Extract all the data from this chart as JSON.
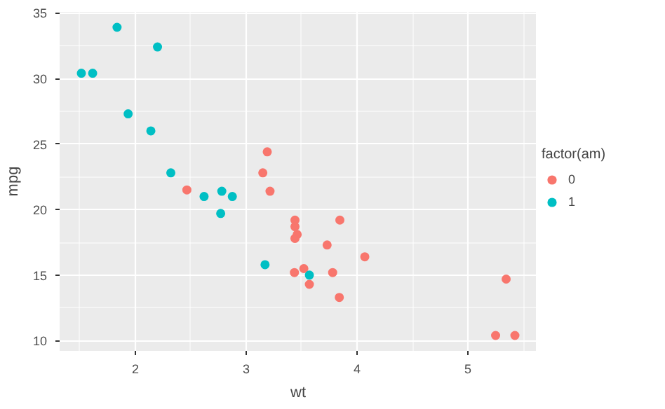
{
  "chart_data": {
    "type": "scatter",
    "xlabel": "wt",
    "ylabel": "mpg",
    "legend_title": "factor(am)",
    "legend": "right",
    "grid": true,
    "marker": "circle",
    "xlim": [
      1.317,
      5.62
    ],
    "ylim": [
      9.225,
      35.075
    ],
    "xticks": [
      2,
      3,
      4,
      5
    ],
    "yticks": [
      10,
      15,
      20,
      25,
      30,
      35
    ],
    "series": [
      {
        "name": "0",
        "color": "#f8766d",
        "x": [
          3.215,
          3.44,
          3.46,
          3.57,
          3.19,
          3.15,
          3.44,
          3.44,
          4.07,
          3.73,
          3.78,
          5.25,
          5.424,
          5.345,
          2.465,
          3.52,
          3.435,
          3.84,
          3.845
        ],
        "values": [
          21.4,
          18.7,
          18.1,
          14.3,
          24.4,
          22.8,
          19.2,
          17.8,
          16.4,
          17.3,
          15.2,
          10.4,
          10.4,
          14.7,
          21.5,
          15.5,
          15.2,
          13.3,
          19.2
        ]
      },
      {
        "name": "1",
        "color": "#00bfc4",
        "x": [
          2.62,
          2.875,
          2.32,
          2.2,
          1.615,
          1.835,
          1.935,
          2.14,
          1.513,
          3.17,
          2.77,
          3.57,
          2.78
        ],
        "values": [
          21.0,
          21.0,
          22.8,
          32.4,
          30.4,
          33.9,
          27.3,
          26.0,
          30.4,
          15.8,
          19.7,
          15.0,
          21.4
        ]
      }
    ]
  }
}
